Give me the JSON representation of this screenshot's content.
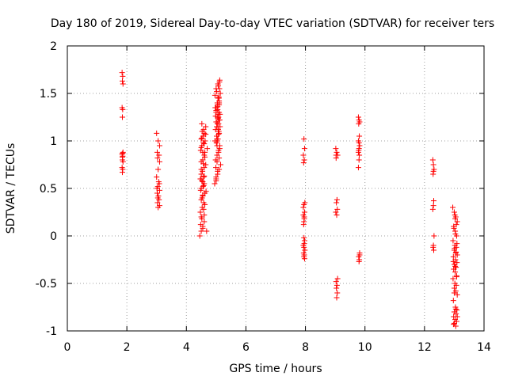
{
  "chart_data": {
    "type": "scatter",
    "title": "Day 180 of 2019, Sidereal Day-to-day VTEC variation (SDTVAR) for receiver ters",
    "xlabel": "GPS time / hours",
    "ylabel": "SDTVAR / TECUs",
    "xlim": [
      0,
      14
    ],
    "ylim": [
      -1,
      2
    ],
    "xticks": [
      0,
      2,
      4,
      6,
      8,
      10,
      12,
      14
    ],
    "yticks": [
      -1,
      -0.5,
      0,
      0.5,
      1,
      1.5,
      2
    ],
    "xtick_labels": [
      "0",
      "2",
      "4",
      "6",
      "8",
      "10",
      "12",
      "14"
    ],
    "ytick_labels": [
      "-1",
      "-0.5",
      "0",
      "0.5",
      "1",
      "1.5",
      "2"
    ],
    "grid": true,
    "marker": "+",
    "color": "#ff0000",
    "series": [
      {
        "name": "SDTVAR",
        "x": [
          1.84,
          1.86,
          1.85,
          1.87,
          1.84,
          1.86,
          1.85,
          1.87,
          1.84,
          1.86,
          1.85,
          1.87,
          1.84,
          1.86,
          1.85,
          1.85,
          1.86,
          3.0,
          3.05,
          3.1,
          3.02,
          3.08,
          3.03,
          3.1,
          3.05,
          3.0,
          3.07,
          3.04,
          3.1,
          3.02,
          3.06,
          3.08,
          3.03,
          3.1,
          3.05,
          3.01,
          3.09,
          3.04,
          4.45,
          4.5,
          4.55,
          4.48,
          4.52,
          4.6,
          4.47,
          4.53,
          4.58,
          4.5,
          4.55,
          4.62,
          4.48,
          4.5,
          4.56,
          4.6,
          4.52,
          4.47,
          4.58,
          4.5,
          4.54,
          4.6,
          4.65,
          4.5,
          4.55,
          4.6,
          4.62,
          4.48,
          4.7,
          4.52,
          4.57,
          4.63,
          4.5,
          4.56,
          4.6,
          4.53,
          4.58,
          4.65,
          4.52,
          4.68,
          4.55,
          4.6,
          4.5,
          4.58,
          4.62,
          4.53,
          4.66,
          4.55,
          4.6,
          4.5,
          4.57,
          4.62,
          4.55,
          4.5,
          4.6,
          4.52,
          4.65,
          4.58,
          4.48,
          4.55,
          4.95,
          5.0,
          5.05,
          5.1,
          5.15,
          4.98,
          5.03,
          5.08,
          5.12,
          4.96,
          5.02,
          5.07,
          5.13,
          5.0,
          5.05,
          5.1,
          4.97,
          5.04,
          5.09,
          5.14,
          5.0,
          5.06,
          5.11,
          4.99,
          5.03,
          5.08,
          5.12,
          5.01,
          5.06,
          5.1,
          4.98,
          5.04,
          5.09,
          5.13,
          5.0,
          5.05,
          5.1,
          4.96,
          5.02,
          5.07,
          5.12,
          5.0,
          5.05,
          5.1,
          5.03,
          5.08,
          5.0,
          5.06,
          5.11,
          5.02,
          5.07,
          5.12,
          5.0,
          5.04,
          5.09,
          5.01,
          5.06,
          5.1,
          5.03,
          5.08,
          4.98,
          5.05,
          5.1,
          5.02,
          5.07,
          5.0,
          5.05,
          5.09,
          5.03,
          5.08,
          7.95,
          7.97,
          7.93,
          7.96,
          7.94,
          7.98,
          7.95,
          7.97,
          7.93,
          7.96,
          7.95,
          7.94,
          7.97,
          7.96,
          7.93,
          7.95,
          7.98,
          7.94,
          7.96,
          7.95,
          7.97,
          7.93,
          7.96,
          7.95,
          9.02,
          9.05,
          9.08,
          9.03,
          9.06,
          9.04,
          9.07,
          9.02,
          9.05,
          9.08,
          9.03,
          9.06,
          9.04,
          9.07,
          9.05,
          9.03,
          9.78,
          9.8,
          9.82,
          9.79,
          9.81,
          9.78,
          9.8,
          9.82,
          9.79,
          9.81,
          9.8,
          9.78,
          9.82,
          9.79,
          9.81,
          9.8,
          9.78,
          9.8,
          9.82,
          12.28,
          12.3,
          12.32,
          12.29,
          12.31,
          12.3,
          12.28,
          12.32,
          12.3,
          12.29,
          12.31,
          12.3,
          12.95,
          13.0,
          13.05,
          13.1,
          12.98,
          13.03,
          13.08,
          12.96,
          13.02,
          13.07,
          13.0,
          13.05,
          13.1,
          12.97,
          13.04,
          13.09,
          13.0,
          13.06,
          12.98,
          13.03,
          13.08,
          12.96,
          13.02,
          13.07,
          13.0,
          13.05,
          13.1,
          12.97,
          13.04,
          13.09,
          13.0,
          13.06,
          12.98,
          13.03,
          13.08,
          13.0,
          13.05,
          13.02,
          13.07,
          12.99,
          13.04,
          13.09,
          13.01,
          13.06,
          12.97,
          13.03,
          13.08,
          13.0,
          13.05,
          13.1,
          12.98,
          13.03
        ],
        "y": [
          1.72,
          1.68,
          1.63,
          1.6,
          1.35,
          1.33,
          1.25,
          0.88,
          0.86,
          0.84,
          0.8,
          0.78,
          0.72,
          0.7,
          0.67,
          0.83,
          0.87,
          1.08,
          1.0,
          0.95,
          0.88,
          0.85,
          0.82,
          0.78,
          0.7,
          0.62,
          0.57,
          0.52,
          0.48,
          0.45,
          0.42,
          0.38,
          0.35,
          0.32,
          0.3,
          0.5,
          0.55,
          0.4,
          0.0,
          0.05,
          0.08,
          0.12,
          0.18,
          0.22,
          0.25,
          0.3,
          0.35,
          0.38,
          0.42,
          0.45,
          0.48,
          0.5,
          0.52,
          0.55,
          0.58,
          0.6,
          0.62,
          0.65,
          0.68,
          0.72,
          0.75,
          0.78,
          0.8,
          0.85,
          0.88,
          0.9,
          0.92,
          0.95,
          0.98,
          1.0,
          1.02,
          1.05,
          1.08,
          1.1,
          1.12,
          1.15,
          1.18,
          0.05,
          0.1,
          0.15,
          0.2,
          0.28,
          0.33,
          0.4,
          0.47,
          0.57,
          0.63,
          0.7,
          0.76,
          0.83,
          0.88,
          0.93,
          0.97,
          1.03,
          1.07,
          0.53,
          0.6,
          0.43,
          0.55,
          0.6,
          0.65,
          0.7,
          0.75,
          0.8,
          0.85,
          0.9,
          0.95,
          1.0,
          1.05,
          1.1,
          1.15,
          1.2,
          1.25,
          1.3,
          1.35,
          1.4,
          1.45,
          1.5,
          1.55,
          1.6,
          1.62,
          0.72,
          0.78,
          0.88,
          0.92,
          0.98,
          1.02,
          1.08,
          1.12,
          1.18,
          1.22,
          1.28,
          1.32,
          1.38,
          1.42,
          1.48,
          1.52,
          1.58,
          1.64,
          0.62,
          0.68,
          0.82,
          1.15,
          1.25,
          1.35,
          1.45,
          1.55,
          1.05,
          1.12,
          1.22,
          1.3,
          1.0,
          1.1,
          1.2,
          1.28,
          1.38,
          0.95,
          1.18,
          1.26,
          1.33,
          1.4,
          1.15,
          1.24,
          0.58,
          1.36,
          1.46,
          1.02,
          1.07,
          1.02,
          0.92,
          0.85,
          0.8,
          0.77,
          0.35,
          0.33,
          0.25,
          0.22,
          0.18,
          0.15,
          0.12,
          -0.05,
          -0.08,
          -0.1,
          -0.12,
          -0.15,
          -0.18,
          -0.2,
          -0.22,
          -0.24,
          0.3,
          0.2,
          -0.02,
          0.92,
          0.88,
          0.85,
          0.82,
          0.38,
          0.35,
          0.28,
          0.25,
          0.22,
          -0.45,
          -0.48,
          -0.52,
          -0.55,
          -0.6,
          -0.65,
          0.85,
          1.25,
          1.22,
          1.2,
          1.18,
          1.05,
          1.0,
          0.98,
          0.95,
          0.9,
          0.85,
          0.8,
          0.72,
          -0.18,
          -0.22,
          -0.25,
          -0.27,
          0.88,
          0.92,
          -0.2,
          0.8,
          0.75,
          0.7,
          0.65,
          0.37,
          0.32,
          0.28,
          0.0,
          -0.1,
          -0.12,
          -0.15,
          0.68,
          0.3,
          0.25,
          0.2,
          0.15,
          0.1,
          0.05,
          0.0,
          -0.05,
          -0.1,
          -0.12,
          -0.15,
          -0.18,
          -0.2,
          -0.22,
          -0.25,
          -0.28,
          -0.3,
          -0.33,
          -0.35,
          -0.38,
          -0.42,
          -0.45,
          -0.5,
          -0.52,
          -0.55,
          -0.58,
          -0.62,
          -0.68,
          -0.75,
          -0.78,
          -0.8,
          -0.82,
          -0.85,
          -0.88,
          -0.9,
          -0.92,
          -0.95,
          0.22,
          0.12,
          0.08,
          0.02,
          -0.08,
          -0.13,
          -0.17,
          -0.27,
          -0.32,
          -0.43,
          -0.6,
          -0.77,
          -0.85,
          -0.93,
          0.18
        ]
      }
    ]
  }
}
